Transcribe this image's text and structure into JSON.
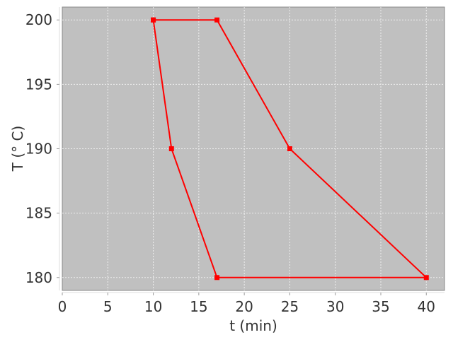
{
  "chart_data": {
    "type": "line",
    "title": "",
    "xlabel": "t (min)",
    "ylabel": "T (° C)",
    "xlim": [
      0,
      42
    ],
    "ylim": [
      179,
      201
    ],
    "xticks": [
      0,
      5,
      10,
      15,
      20,
      25,
      30,
      35,
      40
    ],
    "yticks": [
      180,
      185,
      190,
      195,
      200
    ],
    "grid": true,
    "background_color": "#c0c0c0",
    "series": [
      {
        "color": "#ff0000",
        "marker": "square",
        "x": [
          10,
          17,
          25,
          40,
          17,
          12,
          10
        ],
        "y": [
          200,
          200,
          190,
          180,
          180,
          190,
          200
        ]
      }
    ]
  }
}
